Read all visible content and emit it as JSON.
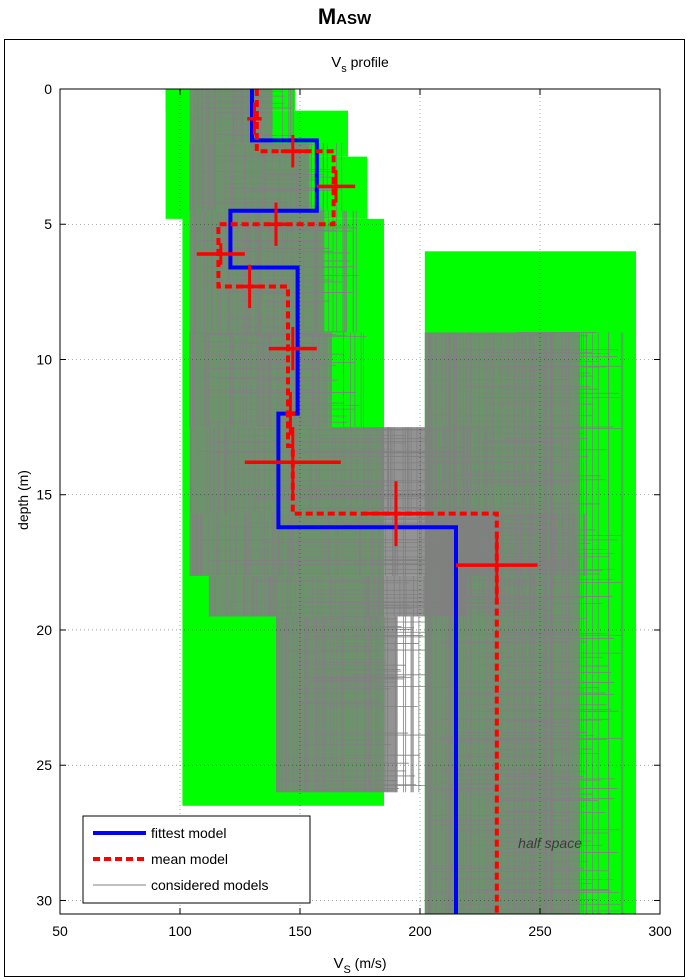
{
  "figure": {
    "title": "Masw"
  },
  "chart_data": {
    "type": "line",
    "title": "V",
    "title_sub": "s",
    "title_suffix": " profile",
    "xlabel": "V",
    "xlabel_sub": "S",
    "xlabel_suffix": " (m/s)",
    "ylabel": "depth (m)",
    "xlim": [
      50,
      300
    ],
    "ylim": [
      0,
      30.5
    ],
    "y_reversed": true,
    "grid": true,
    "x_ticks": [
      50,
      100,
      150,
      200,
      250,
      300
    ],
    "y_ticks": [
      0,
      5,
      10,
      15,
      20,
      25,
      30
    ],
    "legend_position": "bottom-left",
    "annotation": "half space",
    "colors": {
      "fittest": "#0000ff",
      "mean": "#ff0000",
      "considered": "#808080",
      "envelope": "#00ff00"
    },
    "series": [
      {
        "name": "fittest model",
        "style": "solid",
        "steps": [
          {
            "vs": 130,
            "top": 0,
            "bottom": 1.9
          },
          {
            "vs": 157,
            "top": 1.9,
            "bottom": 4.5
          },
          {
            "vs": 121,
            "top": 4.5,
            "bottom": 6.6
          },
          {
            "vs": 149,
            "top": 6.6,
            "bottom": 12.0
          },
          {
            "vs": 141,
            "top": 12.0,
            "bottom": 16.2
          },
          {
            "vs": 215,
            "top": 16.2,
            "bottom": 30.5
          }
        ]
      },
      {
        "name": "mean model",
        "style": "dashed",
        "steps": [
          {
            "vs": 132,
            "top": 0,
            "bottom": 2.3
          },
          {
            "vs": 164,
            "top": 2.3,
            "bottom": 5.0
          },
          {
            "vs": 116,
            "top": 5.0,
            "bottom": 7.3
          },
          {
            "vs": 145,
            "top": 7.3,
            "bottom": 13.2
          },
          {
            "vs": 147,
            "top": 13.2,
            "bottom": 15.7
          },
          {
            "vs": 232,
            "top": 15.7,
            "bottom": 30.5
          }
        ]
      },
      {
        "name": "considered models",
        "style": "thin"
      }
    ],
    "error_crosses": [
      {
        "vs": 131,
        "depth": 1.1,
        "vs_half": 3,
        "depth_half": 0.6
      },
      {
        "vs": 147,
        "depth": 2.3,
        "vs_half": 5,
        "depth_half": 0.6
      },
      {
        "vs": 165,
        "depth": 3.6,
        "vs_half": 8,
        "depth_half": 0.6
      },
      {
        "vs": 140,
        "depth": 5.0,
        "vs_half": 4,
        "depth_half": 0.8
      },
      {
        "vs": 117,
        "depth": 6.1,
        "vs_half": 10,
        "depth_half": 0.4
      },
      {
        "vs": 129,
        "depth": 7.3,
        "vs_half": 4,
        "depth_half": 0.8
      },
      {
        "vs": 147,
        "depth": 9.6,
        "vs_half": 10,
        "depth_half": 0.8
      },
      {
        "vs": 146,
        "depth": 12.0,
        "vs_half": 2,
        "depth_half": 0.8
      },
      {
        "vs": 147,
        "depth": 13.8,
        "vs_half": 20,
        "depth_half": 1.3
      },
      {
        "vs": 190,
        "depth": 15.7,
        "vs_half": 13,
        "depth_half": 1.2
      },
      {
        "vs": 232,
        "depth": 17.6,
        "vs_half": 17,
        "depth_half": 1.2
      }
    ],
    "envelope_regions": [
      {
        "vs_min": 94,
        "vs_max": 130,
        "top": 0,
        "bottom": 4.8
      },
      {
        "vs_min": 94,
        "vs_max": 148,
        "top": 0,
        "bottom": 0.8
      },
      {
        "vs_min": 101,
        "vs_max": 170,
        "top": 0.8,
        "bottom": 2.5
      },
      {
        "vs_min": 101,
        "vs_max": 178,
        "top": 2.5,
        "bottom": 4.8
      },
      {
        "vs_min": 101,
        "vs_max": 185,
        "top": 4.8,
        "bottom": 26.5
      },
      {
        "vs_min": 202,
        "vs_max": 290,
        "top": 6.0,
        "bottom": 30.5
      }
    ],
    "gray_bands": [
      {
        "vs_min": 104,
        "vs_max": 148,
        "top": 0,
        "bottom": 2.0
      },
      {
        "vs_min": 104,
        "vs_max": 168,
        "top": 2.0,
        "bottom": 4.5
      },
      {
        "vs_min": 104,
        "vs_max": 176,
        "top": 4.5,
        "bottom": 9.0
      },
      {
        "vs_min": 104,
        "vs_max": 178,
        "top": 9.0,
        "bottom": 12.5
      },
      {
        "vs_min": 104,
        "vs_max": 230,
        "top": 12.5,
        "bottom": 15.7
      },
      {
        "vs_min": 104,
        "vs_max": 270,
        "top": 15.7,
        "bottom": 18.0
      },
      {
        "vs_min": 112,
        "vs_max": 250,
        "top": 18.0,
        "bottom": 19.5
      },
      {
        "vs_min": 140,
        "vs_max": 205,
        "top": 19.5,
        "bottom": 26.0
      },
      {
        "vs_min": 202,
        "vs_max": 285,
        "top": 9.0,
        "bottom": 30.5
      }
    ]
  }
}
